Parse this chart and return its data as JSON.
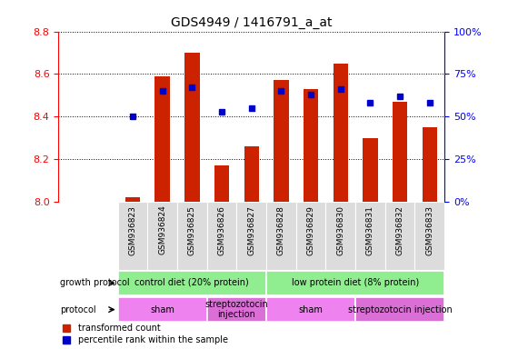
{
  "title": "GDS4949 / 1416791_a_at",
  "samples": [
    "GSM936823",
    "GSM936824",
    "GSM936825",
    "GSM936826",
    "GSM936827",
    "GSM936828",
    "GSM936829",
    "GSM936830",
    "GSM936831",
    "GSM936832",
    "GSM936833"
  ],
  "red_values": [
    8.02,
    8.59,
    8.7,
    8.17,
    8.26,
    8.57,
    8.53,
    8.65,
    8.3,
    8.47,
    8.35
  ],
  "blue_percentile": [
    50,
    65,
    67,
    53,
    55,
    65,
    63,
    66,
    58,
    62,
    58
  ],
  "ylim_left": [
    8.0,
    8.8
  ],
  "bar_color": "#CC2200",
  "dot_color": "#0000CC",
  "growth_protocol_groups": [
    {
      "label": "control diet (20% protein)",
      "start": 0,
      "end": 5,
      "color": "#90EE90"
    },
    {
      "label": "low protein diet (8% protein)",
      "start": 5,
      "end": 11,
      "color": "#90EE90"
    }
  ],
  "protocol_groups": [
    {
      "label": "sham",
      "start": 0,
      "end": 3,
      "color": "#EE82EE"
    },
    {
      "label": "streptozotocin\ninjection",
      "start": 3,
      "end": 5,
      "color": "#DA70D6"
    },
    {
      "label": "sham",
      "start": 5,
      "end": 8,
      "color": "#EE82EE"
    },
    {
      "label": "streptozotocin injection",
      "start": 8,
      "end": 11,
      "color": "#DA70D6"
    }
  ]
}
